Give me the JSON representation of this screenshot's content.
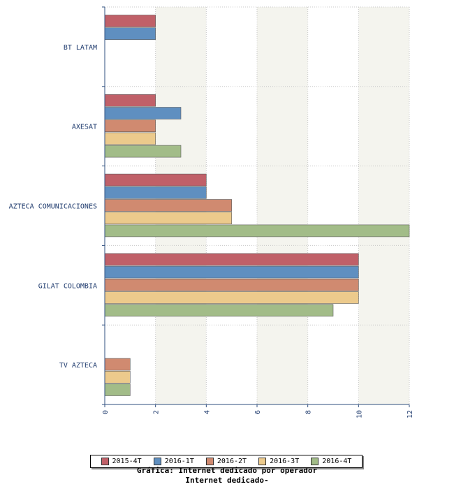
{
  "chart_data": {
    "type": "bar",
    "orientation": "horizontal",
    "categories": [
      "BT LATAM",
      "AXESAT",
      "AZTECA COMUNICACIONES",
      "GILAT COLOMBIA",
      "TV AZTECA"
    ],
    "series": [
      {
        "name": "2015-4T",
        "color": "#c06068",
        "values": [
          2,
          2,
          4,
          10,
          null
        ]
      },
      {
        "name": "2016-1T",
        "color": "#5f8fc0",
        "values": [
          2,
          3,
          4,
          10,
          null
        ]
      },
      {
        "name": "2016-2T",
        "color": "#d08a70",
        "values": [
          null,
          2,
          5,
          10,
          1
        ]
      },
      {
        "name": "2016-3T",
        "color": "#ecca8c",
        "values": [
          null,
          2,
          5,
          10,
          1
        ]
      },
      {
        "name": "2016-4T",
        "color": "#a2bc88",
        "values": [
          null,
          3,
          12,
          9,
          1
        ]
      }
    ],
    "xlim": [
      0,
      12
    ],
    "x_ticks": [
      "0",
      "2",
      "4",
      "6",
      "8",
      "10",
      "12"
    ],
    "grid": true,
    "legend_position": "bottom",
    "caption_lines": [
      "Gráfica: Internet dedicado por operador",
      "Internet dedicado-"
    ]
  }
}
